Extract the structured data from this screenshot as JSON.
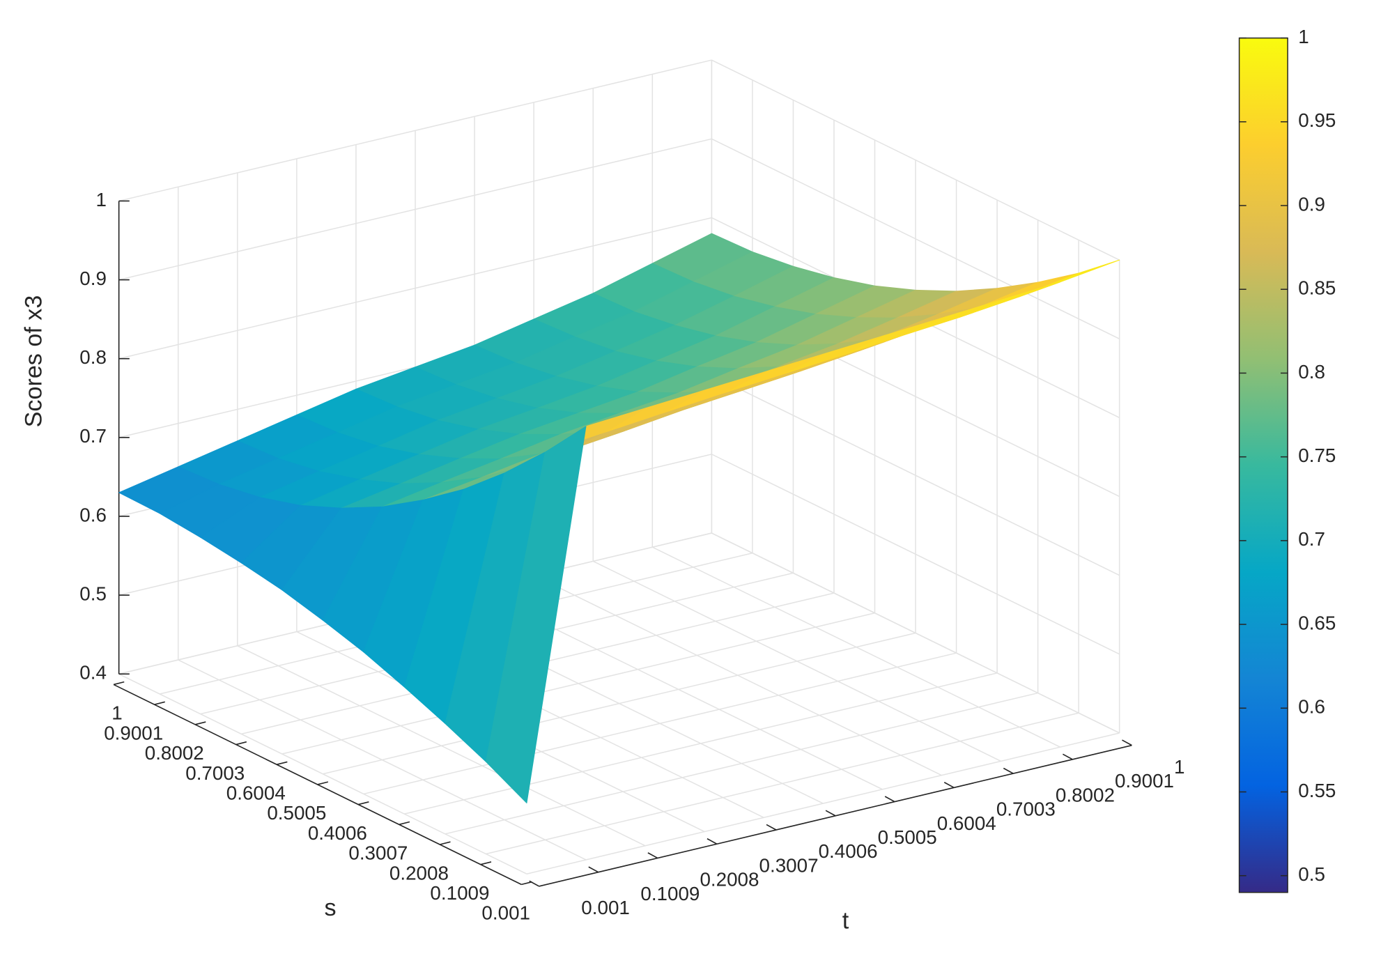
{
  "chart_data": {
    "type": "surface",
    "xlabel": "t",
    "ylabel": "s",
    "zlabel": "Scores of x3",
    "x": [
      0.001,
      0.1009,
      0.2008,
      0.3007,
      0.4006,
      0.5005,
      0.6004,
      0.7003,
      0.8002,
      0.9001,
      1
    ],
    "y": [
      0.001,
      0.1009,
      0.2008,
      0.3007,
      0.4006,
      0.5005,
      0.6004,
      0.7003,
      0.8002,
      0.9001,
      1
    ],
    "z": [
      [
        0.49,
        0.95,
        0.955,
        0.96,
        0.965,
        0.97,
        0.975,
        0.98,
        0.985,
        0.99,
        1.0
      ],
      [
        0.517,
        0.892,
        0.899,
        0.906,
        0.913,
        0.919,
        0.925,
        0.932,
        0.938,
        0.946,
        0.958
      ],
      [
        0.54,
        0.84,
        0.849,
        0.857,
        0.866,
        0.873,
        0.88,
        0.888,
        0.897,
        0.907,
        0.921
      ],
      [
        0.561,
        0.794,
        0.805,
        0.815,
        0.825,
        0.832,
        0.84,
        0.85,
        0.86,
        0.873,
        0.888
      ],
      [
        0.58,
        0.755,
        0.766,
        0.778,
        0.789,
        0.797,
        0.805,
        0.817,
        0.828,
        0.843,
        0.859
      ],
      [
        0.595,
        0.721,
        0.734,
        0.746,
        0.759,
        0.768,
        0.776,
        0.789,
        0.801,
        0.818,
        0.835
      ],
      [
        0.608,
        0.694,
        0.707,
        0.721,
        0.734,
        0.743,
        0.752,
        0.766,
        0.779,
        0.797,
        0.815
      ],
      [
        0.617,
        0.672,
        0.687,
        0.701,
        0.715,
        0.724,
        0.734,
        0.748,
        0.762,
        0.781,
        0.8
      ],
      [
        0.624,
        0.657,
        0.672,
        0.686,
        0.701,
        0.711,
        0.721,
        0.735,
        0.75,
        0.769,
        0.789
      ],
      [
        0.629,
        0.648,
        0.663,
        0.678,
        0.693,
        0.703,
        0.713,
        0.728,
        0.742,
        0.762,
        0.782
      ],
      [
        0.63,
        0.645,
        0.66,
        0.675,
        0.69,
        0.7,
        0.71,
        0.725,
        0.74,
        0.76,
        0.78
      ]
    ],
    "xlim": [
      0.001,
      1
    ],
    "ylim": [
      0.001,
      1
    ],
    "zlim": [
      0.4,
      1
    ],
    "xticks": [
      0.001,
      0.1009,
      0.2008,
      0.3007,
      0.4006,
      0.5005,
      0.6004,
      0.7003,
      0.8002,
      0.9001,
      1
    ],
    "yticks": [
      0.001,
      0.1009,
      0.2008,
      0.3007,
      0.4006,
      0.5005,
      0.6004,
      0.7003,
      0.8002,
      0.9001,
      1
    ],
    "zticks": [
      0.4,
      0.5,
      0.6,
      0.7,
      0.8,
      0.9,
      1
    ],
    "grid": true,
    "colormap": "parula",
    "clim": [
      0.49,
      1
    ],
    "colorbar_ticks": [
      0.5,
      0.55,
      0.6,
      0.65,
      0.7,
      0.75,
      0.8,
      0.85,
      0.9,
      0.95,
      1
    ]
  }
}
